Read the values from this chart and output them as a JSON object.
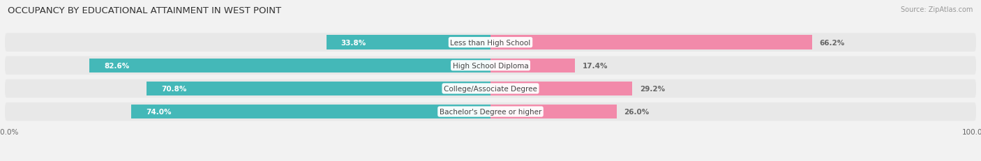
{
  "title": "OCCUPANCY BY EDUCATIONAL ATTAINMENT IN WEST POINT",
  "source": "Source: ZipAtlas.com",
  "categories": [
    "Less than High School",
    "High School Diploma",
    "College/Associate Degree",
    "Bachelor's Degree or higher"
  ],
  "owner_pct": [
    33.8,
    82.6,
    70.8,
    74.0
  ],
  "renter_pct": [
    66.2,
    17.4,
    29.2,
    26.0
  ],
  "owner_color": "#44b8b8",
  "renter_color": "#f28aaa",
  "background_color": "#f2f2f2",
  "row_bg_color": "#e8e8e8",
  "title_fontsize": 9.5,
  "source_fontsize": 7,
  "label_fontsize": 7.5,
  "pct_fontsize": 7.5,
  "legend_fontsize": 8,
  "axis_tick_fontsize": 7.5
}
